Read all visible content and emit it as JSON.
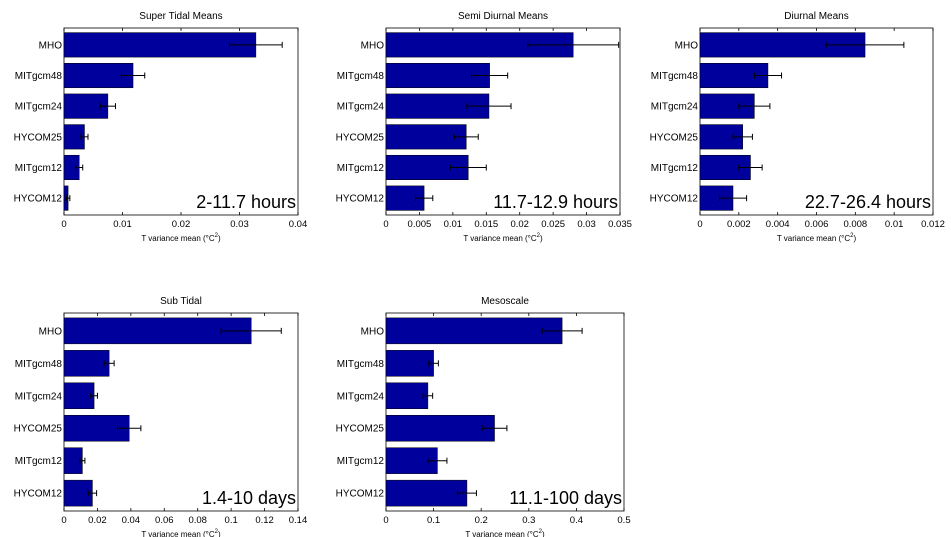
{
  "chart_data": [
    {
      "type": "bar",
      "orientation": "horizontal",
      "title": "Super Tidal Means",
      "annotation": "2-11.7 hours",
      "xlabel": "T variance mean (°C",
      "xlabel_sup": "2",
      "xlabel_end": ")",
      "categories": [
        "MHO",
        "MITgcm48",
        "MITgcm24",
        "HYCOM25",
        "MITgcm12",
        "HYCOM12"
      ],
      "values": [
        0.0328,
        0.0118,
        0.0075,
        0.0035,
        0.0026,
        0.0007
      ],
      "errors": [
        0.0045,
        0.002,
        0.0013,
        0.0006,
        0.0006,
        0.0003
      ],
      "xlim": [
        0,
        0.04
      ],
      "xticks": [
        0,
        0.01,
        0.02,
        0.03,
        0.04
      ],
      "xtick_labels": [
        "0",
        "0.01",
        "0.02",
        "0.03",
        "0.04"
      ],
      "bar_color": "#00009c"
    },
    {
      "type": "bar",
      "orientation": "horizontal",
      "title": "Semi Diurnal Means",
      "annotation": "11.7-12.9 hours",
      "xlabel": "T variance mean (°C",
      "xlabel_sup": "2",
      "xlabel_end": ")",
      "categories": [
        "MHO",
        "MITgcm48",
        "MITgcm24",
        "HYCOM25",
        "MITgcm12",
        "HYCOM12"
      ],
      "values": [
        0.028,
        0.0155,
        0.0154,
        0.012,
        0.0123,
        0.0057
      ],
      "errors": [
        0.0068,
        0.0027,
        0.0033,
        0.0018,
        0.0027,
        0.0013
      ],
      "xlim": [
        0,
        0.035
      ],
      "xticks": [
        0,
        0.005,
        0.01,
        0.015,
        0.02,
        0.025,
        0.03,
        0.035
      ],
      "xtick_labels": [
        "0",
        "0.005",
        "0.01",
        "0.015",
        "0.02",
        "0.025",
        "0.03",
        "0.035"
      ],
      "bar_color": "#00009c"
    },
    {
      "type": "bar",
      "orientation": "horizontal",
      "title": "Diurnal Means",
      "annotation": "22.7-26.4 hours",
      "xlabel": "T variance mean (°C",
      "xlabel_sup": "2",
      "xlabel_end": ")",
      "categories": [
        "MHO",
        "MITgcm48",
        "MITgcm24",
        "HYCOM25",
        "MITgcm12",
        "HYCOM12"
      ],
      "values": [
        0.0085,
        0.0035,
        0.0028,
        0.0022,
        0.0026,
        0.0017
      ],
      "errors": [
        0.002,
        0.0007,
        0.0008,
        0.0005,
        0.0006,
        0.0007
      ],
      "xlim": [
        0,
        0.012
      ],
      "xticks": [
        0,
        0.002,
        0.004,
        0.006,
        0.008,
        0.01,
        0.012
      ],
      "xtick_labels": [
        "0",
        "0.002",
        "0.004",
        "0.006",
        "0.008",
        "0.01",
        "0.012"
      ],
      "bar_color": "#00009c"
    },
    {
      "type": "bar",
      "orientation": "horizontal",
      "title": "Sub Tidal",
      "annotation": "1.4-10 days",
      "xlabel": "T variance mean (°C",
      "xlabel_sup": "2",
      "xlabel_end": ")",
      "categories": [
        "MHO",
        "MITgcm48",
        "MITgcm24",
        "HYCOM25",
        "MITgcm12",
        "HYCOM12"
      ],
      "values": [
        0.112,
        0.027,
        0.018,
        0.039,
        0.011,
        0.017
      ],
      "errors": [
        0.018,
        0.003,
        0.002,
        0.007,
        0.0015,
        0.0025
      ],
      "xlim": [
        0,
        0.14
      ],
      "xticks": [
        0,
        0.02,
        0.04,
        0.06,
        0.08,
        0.1,
        0.12,
        0.14
      ],
      "xtick_labels": [
        "0",
        "0.02",
        "0.04",
        "0.06",
        "0.08",
        "0.1",
        "0.12",
        "0.14"
      ],
      "bar_color": "#00009c"
    },
    {
      "type": "bar",
      "orientation": "horizontal",
      "title": "Mesoscale",
      "annotation": "11.1-100 days",
      "xlabel": "T variance mean (°C",
      "xlabel_sup": "2",
      "xlabel_end": ")",
      "categories": [
        "MHO",
        "MITgcm48",
        "MITgcm24",
        "HYCOM25",
        "MITgcm12",
        "HYCOM12"
      ],
      "values": [
        0.37,
        0.1,
        0.088,
        0.228,
        0.108,
        0.17
      ],
      "errors": [
        0.042,
        0.01,
        0.01,
        0.026,
        0.02,
        0.02
      ],
      "xlim": [
        0,
        0.5
      ],
      "xticks": [
        0,
        0.1,
        0.2,
        0.3,
        0.4,
        0.5
      ],
      "xtick_labels": [
        "0",
        "0.1",
        "0.2",
        "0.3",
        "0.4",
        "0.5"
      ],
      "bar_color": "#00009c"
    }
  ]
}
